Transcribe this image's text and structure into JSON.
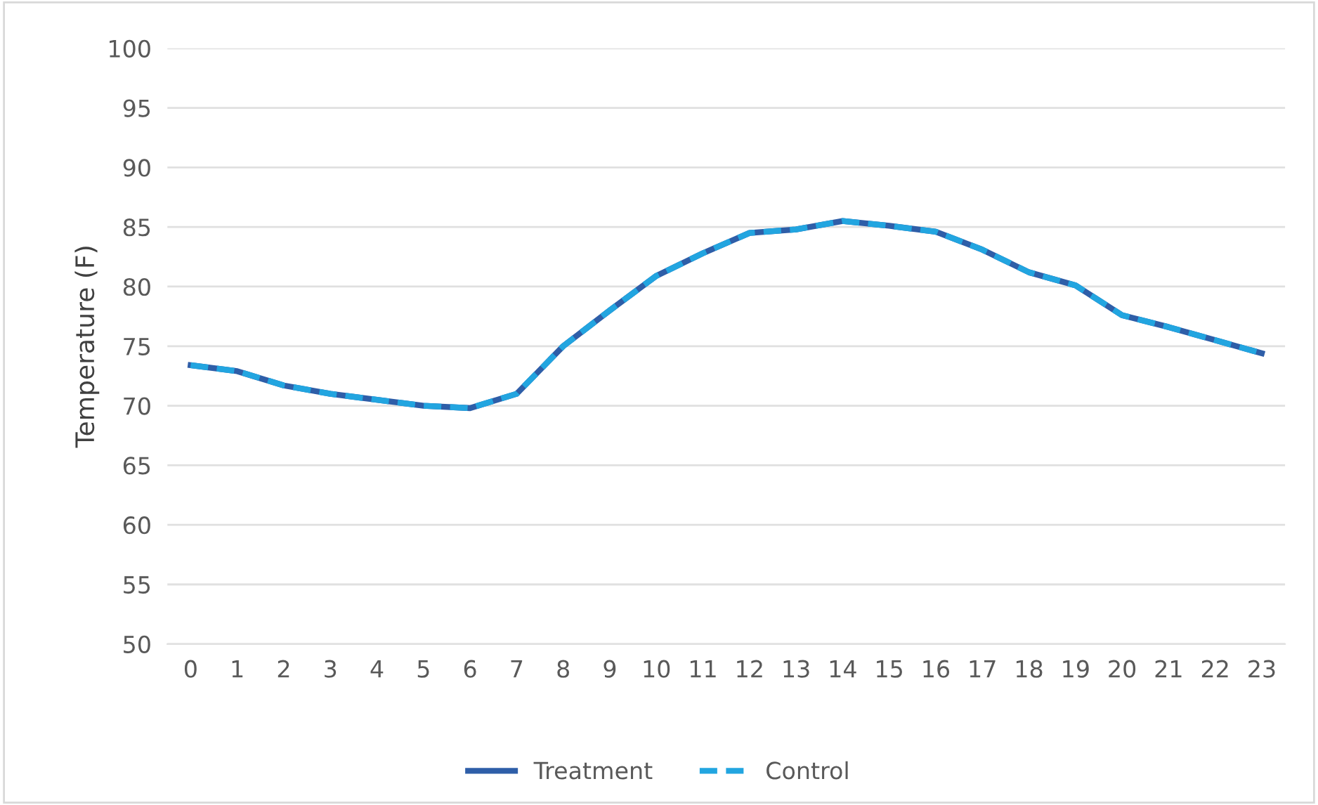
{
  "chart_data": {
    "type": "line",
    "ylabel": "Temperature (F)",
    "categories": [
      "0",
      "1",
      "2",
      "3",
      "4",
      "5",
      "6",
      "7",
      "8",
      "9",
      "10",
      "11",
      "12",
      "13",
      "14",
      "15",
      "16",
      "17",
      "18",
      "19",
      "20",
      "21",
      "22",
      "23"
    ],
    "series": [
      {
        "name": "Treatment",
        "color": "#2e5ea8",
        "line_style": "solid",
        "values": [
          73.4,
          72.9,
          71.7,
          71.0,
          70.5,
          70.0,
          69.8,
          71.0,
          75.0,
          78.0,
          80.9,
          82.8,
          84.5,
          84.8,
          85.5,
          85.1,
          84.6,
          83.1,
          81.2,
          80.1,
          77.6,
          76.6,
          75.5,
          74.4
        ]
      },
      {
        "name": "Control",
        "color": "#22a5e0",
        "line_style": "dashed",
        "values": [
          73.4,
          72.9,
          71.7,
          71.0,
          70.5,
          70.0,
          69.8,
          71.0,
          75.0,
          78.0,
          80.9,
          82.8,
          84.5,
          84.8,
          85.5,
          85.1,
          84.6,
          83.1,
          81.2,
          80.1,
          77.6,
          76.6,
          75.5,
          74.4
        ]
      }
    ],
    "ylim": [
      50,
      100
    ],
    "yticks": [
      50,
      55,
      60,
      65,
      70,
      75,
      80,
      85,
      90,
      95,
      100
    ],
    "grid": "y",
    "legend": "bottom",
    "marker": "none"
  }
}
